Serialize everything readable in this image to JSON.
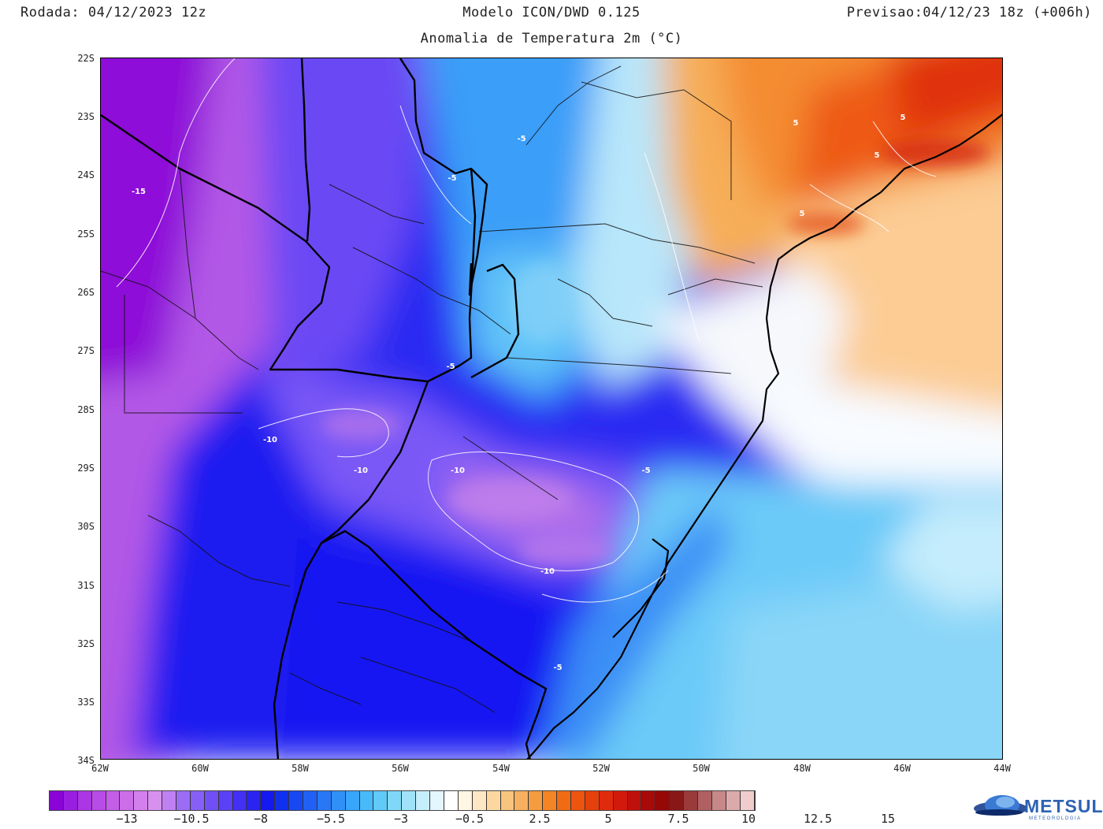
{
  "header": {
    "run": "Rodada: 04/12/2023 12z",
    "model": "Modelo ICON/DWD 0.125",
    "forecast": "Previsao:04/12/23 18z (+006h)",
    "subtitle": "Anomalia de Temperatura 2m (°C)"
  },
  "map": {
    "lat_labels": [
      "22S",
      "23S",
      "24S",
      "25S",
      "26S",
      "27S",
      "28S",
      "29S",
      "30S",
      "31S",
      "32S",
      "33S",
      "34S"
    ],
    "lon_labels": [
      "62W",
      "60W",
      "58W",
      "56W",
      "54W",
      "52W",
      "50W",
      "48W",
      "46W",
      "44W"
    ],
    "contour_labels": [
      "-15",
      "-10",
      "-10",
      "-10",
      "-10",
      "-5",
      "-5",
      "-5",
      "-5",
      "-5",
      "5",
      "5",
      "5",
      "5"
    ]
  },
  "colorbar": {
    "labels": [
      "−13",
      "−10.5",
      "−8",
      "−5.5",
      "−3",
      "−0.5",
      "2.5",
      "5",
      "7.5",
      "10",
      "12.5",
      "15"
    ],
    "colors": [
      "#8a04d8",
      "#9a1ee0",
      "#aa36e4",
      "#b84ce6",
      "#c45ee8",
      "#cc6ee8",
      "#d480ec",
      "#d890ee",
      "#c080f2",
      "#9c6cf4",
      "#8660f6",
      "#7050f6",
      "#5a40f6",
      "#4430f4",
      "#2a24f2",
      "#1618f0",
      "#1030f0",
      "#1848f2",
      "#2060f4",
      "#2878f6",
      "#3090f8",
      "#38a6fa",
      "#48bafa",
      "#60caf8",
      "#80d8f8",
      "#a0e2fa",
      "#c4eefc",
      "#e4f6fe",
      "#ffffff",
      "#fff6e4",
      "#fee8c4",
      "#fcd8a0",
      "#f8c47e",
      "#f6b060",
      "#f49c40",
      "#f48424",
      "#f06c14",
      "#ec5410",
      "#e6400c",
      "#e02a0c",
      "#d21a0c",
      "#c0100c",
      "#a80a0a",
      "#960808",
      "#881818",
      "#9a3a3a",
      "#b06060",
      "#c88888",
      "#dcaaaa",
      "#f0cccc"
    ]
  },
  "logo": {
    "name": "METSUL",
    "tagline": "METEOROLOGIA"
  }
}
